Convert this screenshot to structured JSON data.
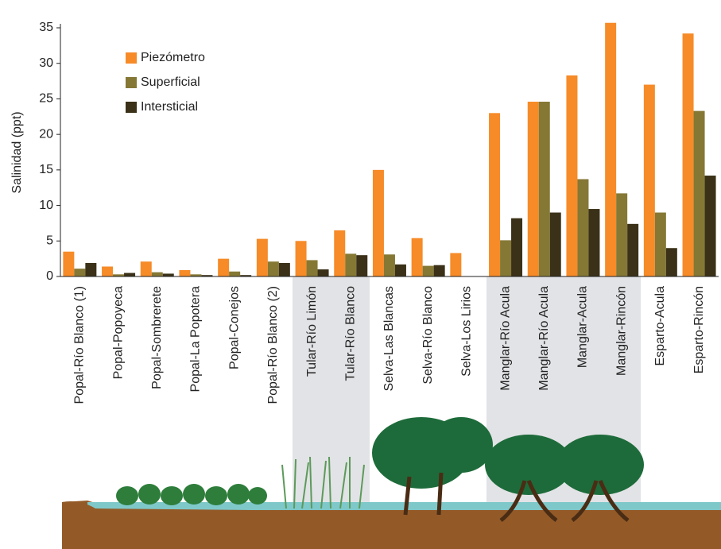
{
  "chart_data": {
    "type": "bar",
    "y_label": "Salinidad (ppt)",
    "categories": [
      "Popal-Río Blanco (1)",
      "Popal-Popoyeca",
      "Popal-Sombrerete",
      "Popal-La Popotera",
      "Popal-Conejos",
      "Popal-Río Blanco (2)",
      "Tular-Río Limón",
      "Tular-Río Blanco",
      "Selva-Las Blancas",
      "Selva-Río Blanco",
      "Selva-Los Lirios",
      "Manglar-Río Acula",
      "Manglar-Río Acula",
      "Manglar-Acula",
      "Manglar-Rincón",
      "Esparto-Acula",
      "Esparto-Rincón"
    ],
    "series": [
      {
        "name": "Piezómetro",
        "color": "#f68b28",
        "values": [
          3.5,
          1.4,
          2.1,
          0.9,
          2.5,
          5.3,
          5.0,
          6.5,
          15.0,
          5.4,
          3.3,
          23.0,
          24.6,
          28.3,
          35.7,
          27.0,
          34.2
        ]
      },
      {
        "name": "Superficial",
        "color": "#857835",
        "values": [
          1.1,
          0.3,
          0.6,
          0.3,
          0.7,
          2.1,
          2.3,
          3.2,
          3.1,
          1.5,
          null,
          5.1,
          24.6,
          13.7,
          11.7,
          9.0,
          23.3
        ]
      },
      {
        "name": "Intersticial",
        "color": "#3b3118",
        "values": [
          1.9,
          0.5,
          0.4,
          0.2,
          0.2,
          1.9,
          1.0,
          3.0,
          1.7,
          1.6,
          null,
          8.2,
          9.0,
          9.5,
          7.4,
          4.0,
          14.2
        ]
      }
    ],
    "ylim": [
      0,
      35
    ],
    "yticks": [
      0,
      5,
      10,
      15,
      20,
      25,
      30,
      35
    ],
    "grid": false,
    "legend": "upper-left"
  }
}
